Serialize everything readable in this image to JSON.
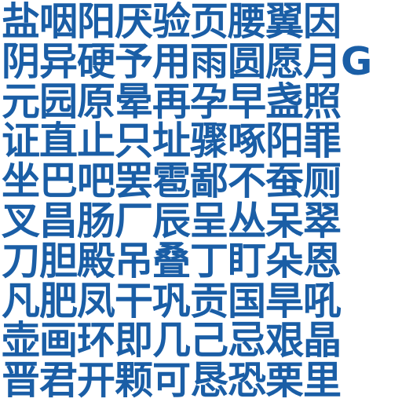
{
  "lines": [
    "盐咽阳厌验页腰翼因",
    "阴异硬予用雨圆愿月G",
    "元园原晕再孕早盏照",
    "证直止只址骤啄阳罪",
    "坐巴吧罢雹鄙不蚕厕",
    "叉昌肠厂辰呈丛呆翠",
    "刀胆殿吊叠丁盯朵恩",
    "凡肥凤干巩贡国旱吼",
    "壶画环即几己忌艰晶",
    "晋君开颗可恳恐栗里"
  ],
  "colors": {
    "text": "#1a5ea6",
    "background": "#ffffff"
  }
}
